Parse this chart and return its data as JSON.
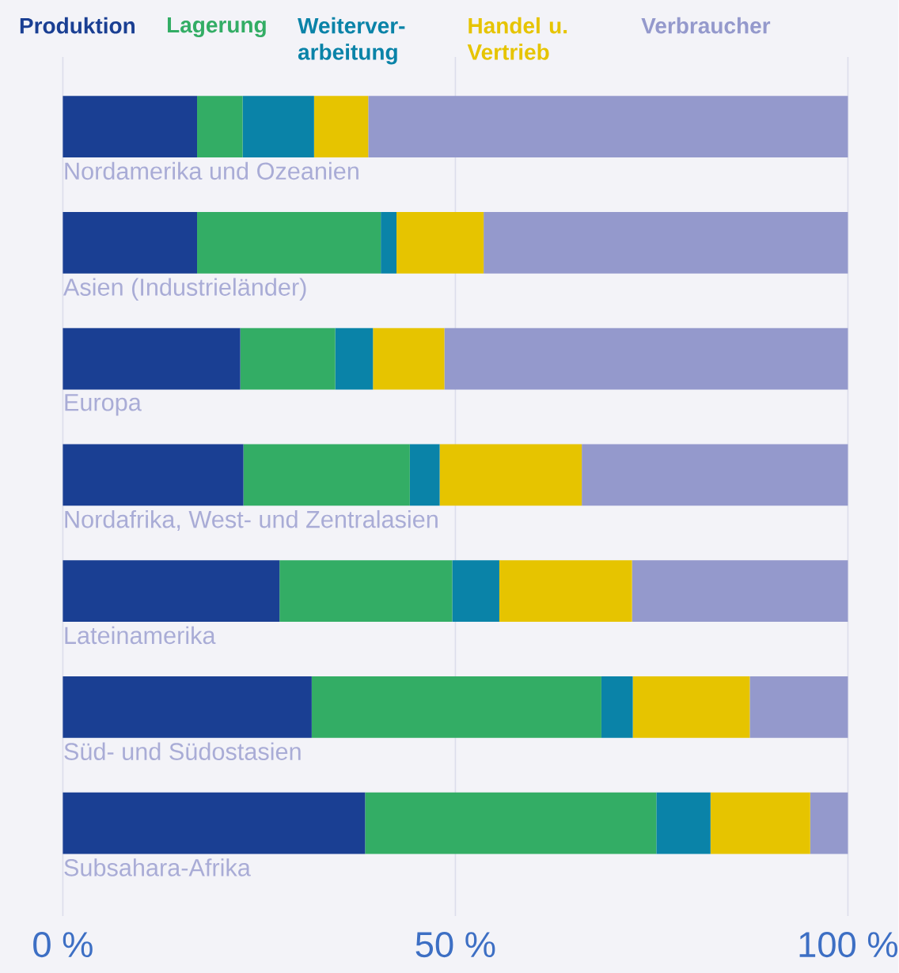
{
  "chart_data": {
    "type": "bar",
    "orientation": "horizontal",
    "stacked": true,
    "categories": [
      "Nordamerika und Ozeanien",
      "Asien (Industrieländer)",
      "Europa",
      "Nordafrika, West- und Zentralasien",
      "Lateinamerika",
      "Süd- und Südostasien",
      "Subsahara-Afrika"
    ],
    "series": [
      {
        "name": "Produktion",
        "color": "#1a3f93",
        "values": [
          17.1,
          17.1,
          22.6,
          23.0,
          27.6,
          31.7,
          38.5
        ]
      },
      {
        "name": "Lagerung",
        "color": "#33ad65",
        "values": [
          5.8,
          23.4,
          12.1,
          21.2,
          22.0,
          36.9,
          37.1
        ]
      },
      {
        "name": "Weiterver-arbeitung",
        "color": "#0a83a8",
        "values": [
          9.1,
          2.0,
          4.8,
          3.8,
          6.0,
          4.0,
          6.9
        ]
      },
      {
        "name": "Handel u. Vertrieb",
        "color": "#e6c400",
        "values": [
          6.9,
          11.1,
          9.1,
          18.1,
          16.9,
          14.9,
          12.7
        ]
      },
      {
        "name": "Verbraucher",
        "color": "#9499cc",
        "values": [
          61.1,
          46.4,
          51.4,
          33.9,
          27.5,
          12.5,
          4.8
        ]
      }
    ],
    "xlim": [
      0,
      100
    ],
    "xticks": [
      {
        "value": 0,
        "label": "0 %"
      },
      {
        "value": 50,
        "label": "50 %"
      },
      {
        "value": 100,
        "label": "100 %"
      }
    ],
    "grid": "x",
    "legend": "top"
  }
}
